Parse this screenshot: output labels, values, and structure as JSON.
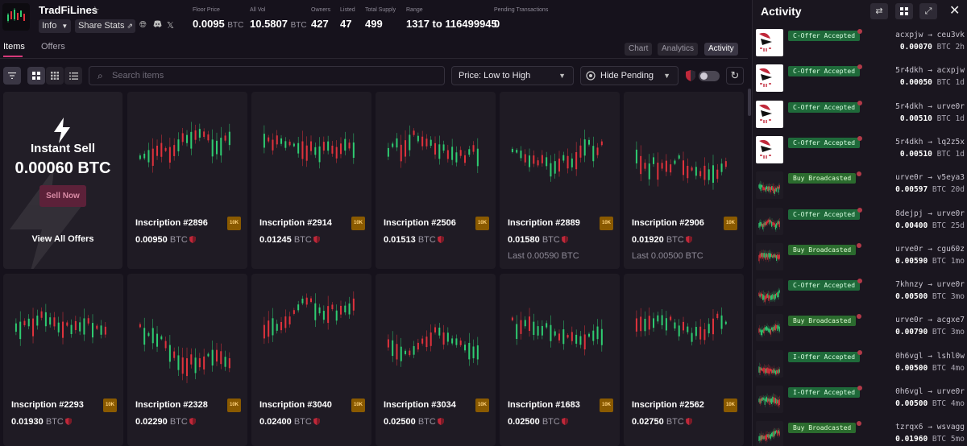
{
  "collection": {
    "name": "TradFiLines",
    "info_label": "Info",
    "share_label": "Share Stats",
    "x_label": "𝕏"
  },
  "stats": [
    {
      "label": "Floor Price",
      "value": "0.0095",
      "unit": "BTC"
    },
    {
      "label": "All Vol",
      "value": "10.5807",
      "unit": "BTC"
    },
    {
      "label": "Owners",
      "value": "427",
      "unit": ""
    },
    {
      "label": "Listed",
      "value": "47",
      "unit": ""
    },
    {
      "label": "Total Supply",
      "value": "499",
      "unit": ""
    },
    {
      "label": "Range",
      "value": "1317 to 116499945",
      "unit": ""
    },
    {
      "label": "Pending Transactions",
      "value": "0",
      "unit": ""
    }
  ],
  "tabs": {
    "items": "Items",
    "offers": "Offers"
  },
  "view_tabs": {
    "chart": "Chart",
    "analytics": "Analytics",
    "activity": "Activity"
  },
  "search": {
    "placeholder": "Search items"
  },
  "sort": {
    "selected": "Price: Low to High"
  },
  "pending_filter": {
    "selected": "Hide Pending"
  },
  "instant_sell": {
    "title": "Instant Sell",
    "amount": "0.00060 BTC",
    "sell_button": "Sell Now",
    "view_all": "View All Offers"
  },
  "items": [
    {
      "name": "Inscription #2896",
      "badge": "10K",
      "price": "0.00950",
      "unit": "BTC",
      "last": ""
    },
    {
      "name": "Inscription #2914",
      "badge": "10K",
      "price": "0.01245",
      "unit": "BTC",
      "last": ""
    },
    {
      "name": "Inscription #2506",
      "badge": "10K",
      "price": "0.01513",
      "unit": "BTC",
      "last": ""
    },
    {
      "name": "Inscription #2889",
      "badge": "10K",
      "price": "0.01580",
      "unit": "BTC",
      "last": "Last 0.00590 BTC"
    },
    {
      "name": "Inscription #2906",
      "badge": "10K",
      "price": "0.01920",
      "unit": "BTC",
      "last": "Last 0.00500 BTC"
    },
    {
      "name": "Inscription #2293",
      "badge": "10K",
      "price": "0.01930",
      "unit": "BTC",
      "last": ""
    },
    {
      "name": "Inscription #2328",
      "badge": "10K",
      "price": "0.02290",
      "unit": "BTC",
      "last": ""
    },
    {
      "name": "Inscription #3040",
      "badge": "10K",
      "price": "0.02400",
      "unit": "BTC",
      "last": ""
    },
    {
      "name": "Inscription #3034",
      "badge": "10K",
      "price": "0.02500",
      "unit": "BTC",
      "last": ""
    },
    {
      "name": "Inscription #1683",
      "badge": "10K",
      "price": "0.02500",
      "unit": "BTC",
      "last": ""
    },
    {
      "name": "Inscription #2562",
      "badge": "10K",
      "price": "0.02750",
      "unit": "BTC",
      "last": ""
    }
  ],
  "activity": {
    "title": "Activity",
    "rows": [
      {
        "type": "C-Offer Accepted",
        "thumb": "colibri",
        "from": "acxpjw",
        "to": "ceu3vk",
        "amount": "0.00070",
        "unit": "BTC",
        "age": "2h"
      },
      {
        "type": "C-Offer Accepted",
        "thumb": "colibri",
        "from": "5r4dkh",
        "to": "acxpjw",
        "amount": "0.00050",
        "unit": "BTC",
        "age": "1d"
      },
      {
        "type": "C-Offer Accepted",
        "thumb": "colibri",
        "from": "5r4dkh",
        "to": "urve0r",
        "amount": "0.00510",
        "unit": "BTC",
        "age": "1d"
      },
      {
        "type": "C-Offer Accepted",
        "thumb": "colibri",
        "from": "5r4dkh",
        "to": "lq2z5x",
        "amount": "0.00510",
        "unit": "BTC",
        "age": "1d"
      },
      {
        "type": "Buy Broadcasted",
        "thumb": "chart",
        "from": "urve0r",
        "to": "v5eya3",
        "amount": "0.00597",
        "unit": "BTC",
        "age": "20d"
      },
      {
        "type": "C-Offer Accepted",
        "thumb": "chart",
        "from": "8dejpj",
        "to": "urve0r",
        "amount": "0.00400",
        "unit": "BTC",
        "age": "25d"
      },
      {
        "type": "Buy Broadcasted",
        "thumb": "chart",
        "from": "urve0r",
        "to": "cgu60z",
        "amount": "0.00590",
        "unit": "BTC",
        "age": "1mo"
      },
      {
        "type": "C-Offer Accepted",
        "thumb": "chart",
        "from": "7khnzy",
        "to": "urve0r",
        "amount": "0.00500",
        "unit": "BTC",
        "age": "3mo"
      },
      {
        "type": "Buy Broadcasted",
        "thumb": "chart",
        "from": "urve0r",
        "to": "acgxe7",
        "amount": "0.00790",
        "unit": "BTC",
        "age": "3mo"
      },
      {
        "type": "I-Offer Accepted",
        "thumb": "chart",
        "from": "0h6vgl",
        "to": "lshl0w",
        "amount": "0.00500",
        "unit": "BTC",
        "age": "4mo"
      },
      {
        "type": "I-Offer Accepted",
        "thumb": "chart",
        "from": "0h6vgl",
        "to": "urve0r",
        "amount": "0.00500",
        "unit": "BTC",
        "age": "4mo"
      },
      {
        "type": "Buy Broadcasted",
        "thumb": "chart",
        "from": "tzrqx6",
        "to": "wsvagg",
        "amount": "0.01960",
        "unit": "BTC",
        "age": "5mo"
      }
    ]
  },
  "colors": {
    "background": "#16121c",
    "card": "#1f1b24",
    "accent": "#d63a7a",
    "badge": "#8a5a00",
    "candle_up": "#2ecc71",
    "candle_down": "#e0323c"
  }
}
